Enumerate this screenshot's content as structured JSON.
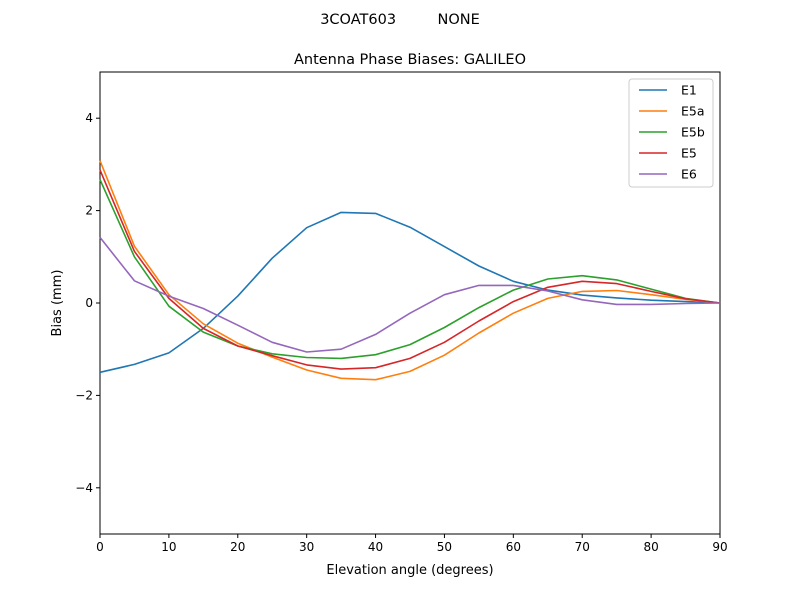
{
  "chart_data": {
    "type": "line",
    "suptitle": "3COAT603         NONE",
    "title": "Antenna Phase Biases: GALILEO",
    "xlabel": "Elevation angle (degrees)",
    "ylabel": "Bias (mm)",
    "xlim": [
      0,
      90
    ],
    "ylim": [
      -5,
      5
    ],
    "xticks": [
      0,
      10,
      20,
      30,
      40,
      50,
      60,
      70,
      80,
      90
    ],
    "yticks": [
      -4,
      -2,
      0,
      2,
      4
    ],
    "ytick_labels": [
      "−4",
      "−2",
      "0",
      "2",
      "4"
    ],
    "grid": false,
    "legend_position": "top-right",
    "x": [
      0,
      5,
      10,
      15,
      20,
      25,
      30,
      35,
      40,
      45,
      50,
      55,
      60,
      65,
      70,
      75,
      80,
      85,
      90
    ],
    "series": [
      {
        "name": "E1",
        "color": "#1f77b4",
        "values": [
          -1.5,
          -1.33,
          -1.08,
          -0.55,
          0.15,
          0.97,
          1.63,
          1.96,
          1.94,
          1.64,
          1.22,
          0.8,
          0.47,
          0.28,
          0.17,
          0.11,
          0.06,
          0.03,
          0.0
        ]
      },
      {
        "name": "E5a",
        "color": "#ff7f0e",
        "values": [
          3.08,
          1.23,
          0.18,
          -0.45,
          -0.87,
          -1.17,
          -1.45,
          -1.63,
          -1.66,
          -1.48,
          -1.13,
          -0.65,
          -0.22,
          0.1,
          0.25,
          0.27,
          0.18,
          0.08,
          0.0
        ]
      },
      {
        "name": "E5b",
        "color": "#2ca02c",
        "values": [
          2.67,
          1.0,
          -0.07,
          -0.63,
          -0.93,
          -1.1,
          -1.18,
          -1.2,
          -1.12,
          -0.9,
          -0.53,
          -0.1,
          0.28,
          0.52,
          0.59,
          0.5,
          0.3,
          0.1,
          0.0
        ]
      },
      {
        "name": "E5",
        "color": "#d62728",
        "values": [
          2.88,
          1.12,
          0.1,
          -0.55,
          -0.93,
          -1.14,
          -1.34,
          -1.43,
          -1.4,
          -1.2,
          -0.85,
          -0.39,
          0.03,
          0.34,
          0.47,
          0.42,
          0.25,
          0.09,
          0.0
        ]
      },
      {
        "name": "E6",
        "color": "#9467bd",
        "values": [
          1.42,
          0.48,
          0.15,
          -0.12,
          -0.48,
          -0.85,
          -1.06,
          -1.0,
          -0.68,
          -0.22,
          0.18,
          0.38,
          0.38,
          0.26,
          0.07,
          -0.03,
          -0.03,
          -0.01,
          0.0
        ]
      }
    ]
  }
}
